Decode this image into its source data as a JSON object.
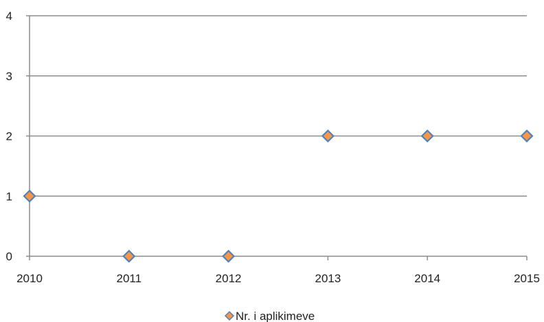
{
  "chart_data": {
    "type": "scatter",
    "x": [
      2010,
      2011,
      2012,
      2013,
      2014,
      2015
    ],
    "series": [
      {
        "name": "Nr. i aplikimeve",
        "values": [
          1,
          0,
          0,
          2,
          2,
          2
        ]
      }
    ],
    "x_tick_labels": [
      "2010",
      "2011",
      "2012",
      "2013",
      "2014",
      "2015"
    ],
    "y_tick_labels": [
      "0",
      "1",
      "2",
      "3",
      "4"
    ],
    "xlim": [
      2010,
      2015
    ],
    "ylim": [
      0,
      4
    ],
    "grid": "horizontal",
    "legend_position": "bottom",
    "marker": "diamond",
    "colors": {
      "marker_fill": "#F79646",
      "marker_stroke": "#4F81BD",
      "gridline": "#8C8C8C",
      "axis": "#8C8C8C",
      "text": "#222222"
    }
  }
}
